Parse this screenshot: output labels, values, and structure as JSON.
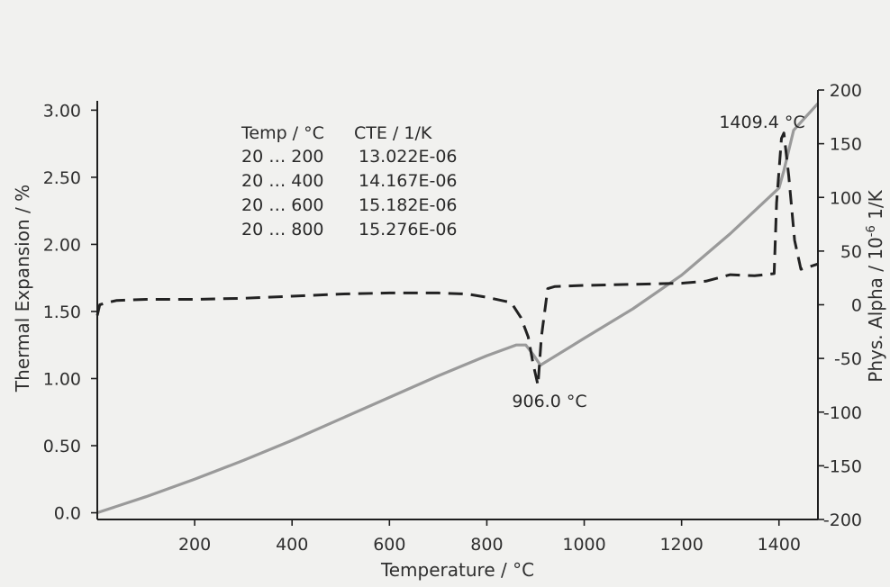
{
  "chart_data": {
    "type": "line",
    "xlabel": "Temperature / °C",
    "ylabel_left": "Thermal Expansion / %",
    "ylabel_right_prefix": "Phys. Alpha / 10",
    "ylabel_right_exp": "-6",
    "ylabel_right_suffix": " 1/K",
    "xlim": [
      0,
      1480
    ],
    "ylim_left": [
      -0.05,
      3.15
    ],
    "ylim_right": [
      -200,
      200
    ],
    "x_ticks": [
      "200",
      "400",
      "600",
      "800",
      "1000",
      "1200",
      "1400"
    ],
    "y_left_ticks": [
      "0.0",
      "0.50",
      "1.00",
      "1.50",
      "2.00",
      "2.50",
      "3.00"
    ],
    "y_right_ticks": [
      "-200",
      "-150",
      "-100",
      "-50",
      "0",
      "50",
      "100",
      "150",
      "200"
    ],
    "grid": false,
    "colors": {
      "expansion": "#9a9a9a",
      "alpha": "#222222",
      "axis": "#1e1e1e"
    },
    "series": [
      {
        "axis": "left",
        "style": "solid",
        "x": [
          0,
          100,
          200,
          300,
          400,
          500,
          600,
          700,
          800,
          860,
          880,
          895,
          910,
          1000,
          1100,
          1200,
          1300,
          1400,
          1410,
          1430,
          1480
        ],
        "y": [
          0.0,
          0.12,
          0.25,
          0.39,
          0.54,
          0.7,
          0.86,
          1.02,
          1.17,
          1.25,
          1.25,
          1.18,
          1.1,
          1.3,
          1.52,
          1.77,
          2.08,
          2.42,
          2.55,
          2.85,
          3.05
        ]
      },
      {
        "axis": "right",
        "style": "dashed",
        "x": [
          0,
          5,
          20,
          40,
          100,
          200,
          300,
          400,
          500,
          600,
          700,
          760,
          800,
          850,
          870,
          885,
          895,
          905,
          912,
          925,
          940,
          1000,
          1100,
          1200,
          1250,
          1300,
          1350,
          1390,
          1395,
          1405,
          1410,
          1420,
          1432,
          1445,
          1460,
          1480
        ],
        "y": [
          -10,
          0,
          2,
          4,
          5,
          5,
          6,
          8,
          10,
          11,
          11,
          10,
          7,
          2,
          -12,
          -30,
          -55,
          -75,
          -30,
          15,
          17,
          18,
          19,
          20,
          22,
          28,
          27,
          29,
          95,
          155,
          160,
          120,
          60,
          33,
          35,
          38
        ]
      }
    ],
    "annotations": [
      {
        "text": "906.0 °C",
        "x": 906,
        "y": -75,
        "axis": "right",
        "place": "below"
      },
      {
        "text": "1409.4 °C",
        "x": 1409.4,
        "y": 160,
        "axis": "right",
        "place": "above"
      }
    ],
    "table": {
      "header": [
        "Temp / °C",
        "CTE / 1/K"
      ],
      "rows": [
        [
          "20 … 200",
          "13.022E-06"
        ],
        [
          "20 … 400",
          "14.167E-06"
        ],
        [
          "20 … 600",
          "15.182E-06"
        ],
        [
          "20 … 800",
          "15.276E-06"
        ]
      ]
    }
  }
}
